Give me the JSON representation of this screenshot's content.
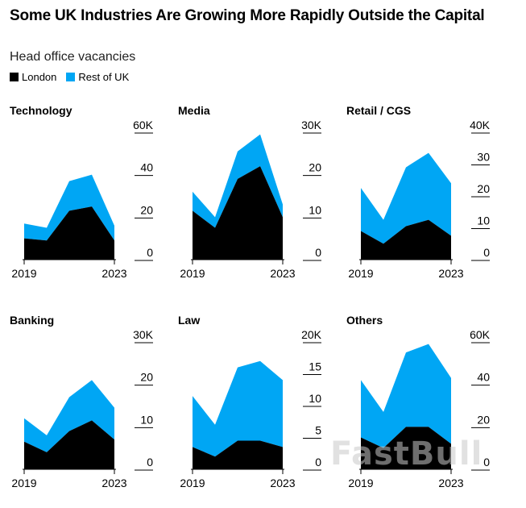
{
  "title": "Some UK Industries Are Growing More Rapidly Outside the Capital",
  "subtitle": "Head office vacancies",
  "legend": [
    {
      "label": "London",
      "color": "#000000"
    },
    {
      "label": "Rest of UK",
      "color": "#00a6f4"
    }
  ],
  "watermark": "FastBull",
  "chart_data": [
    {
      "type": "area",
      "title": "Technology",
      "x": [
        2019,
        2020,
        2021,
        2022,
        2023
      ],
      "xticks": [
        "2019",
        "2023"
      ],
      "ylim": [
        0,
        60
      ],
      "yticks": [
        "60K",
        "40",
        "20",
        "0"
      ],
      "series": [
        {
          "name": "London",
          "values": [
            10,
            9,
            23,
            25,
            9
          ]
        },
        {
          "name": "Rest of UK",
          "values": [
            7,
            6,
            14,
            15,
            7
          ]
        }
      ]
    },
    {
      "type": "area",
      "title": "Media",
      "x": [
        2019,
        2020,
        2021,
        2022,
        2023
      ],
      "xticks": [
        "2019",
        "2023"
      ],
      "ylim": [
        0,
        30
      ],
      "yticks": [
        "30K",
        "20",
        "10",
        "0"
      ],
      "series": [
        {
          "name": "London",
          "values": [
            11.5,
            7.5,
            19,
            22,
            10
          ]
        },
        {
          "name": "Rest of UK",
          "values": [
            4.5,
            2.5,
            6.5,
            7.5,
            3
          ]
        }
      ]
    },
    {
      "type": "area",
      "title": "Retail / CGS",
      "x": [
        2019,
        2020,
        2021,
        2022,
        2023
      ],
      "xticks": [
        "2019",
        "2023"
      ],
      "ylim": [
        0,
        40
      ],
      "yticks": [
        "40K",
        "30",
        "20",
        "10",
        "0"
      ],
      "series": [
        {
          "name": "London",
          "values": [
            9,
            5,
            10.5,
            12.5,
            7.5
          ]
        },
        {
          "name": "Rest of UK",
          "values": [
            13.5,
            7.5,
            18.5,
            21,
            16.5
          ]
        }
      ]
    },
    {
      "type": "area",
      "title": "Banking",
      "x": [
        2019,
        2020,
        2021,
        2022,
        2023
      ],
      "xticks": [
        "2019",
        "2023"
      ],
      "ylim": [
        0,
        30
      ],
      "yticks": [
        "30K",
        "20",
        "10",
        "0"
      ],
      "series": [
        {
          "name": "London",
          "values": [
            6.5,
            4,
            9,
            11.5,
            7
          ]
        },
        {
          "name": "Rest of UK",
          "values": [
            5.5,
            4,
            8,
            9.5,
            7.5
          ]
        }
      ]
    },
    {
      "type": "area",
      "title": "Law",
      "x": [
        2019,
        2020,
        2021,
        2022,
        2023
      ],
      "xticks": [
        "2019",
        "2023"
      ],
      "ylim": [
        0,
        20
      ],
      "yticks": [
        "20K",
        "15",
        "10",
        "5",
        "0"
      ],
      "series": [
        {
          "name": "London",
          "values": [
            3.5,
            2,
            4.5,
            4.5,
            3.5
          ]
        },
        {
          "name": "Rest of UK",
          "values": [
            8,
            5,
            11.5,
            12.5,
            10.5
          ]
        }
      ]
    },
    {
      "type": "area",
      "title": "Others",
      "x": [
        2019,
        2020,
        2021,
        2022,
        2023
      ],
      "xticks": [
        "2019",
        "2023"
      ],
      "ylim": [
        0,
        60
      ],
      "yticks": [
        "60K",
        "40",
        "20",
        "0"
      ],
      "series": [
        {
          "name": "London",
          "values": [
            15,
            10,
            20,
            20,
            12
          ]
        },
        {
          "name": "Rest of UK",
          "values": [
            27,
            17,
            35,
            39,
            31
          ]
        }
      ]
    }
  ]
}
